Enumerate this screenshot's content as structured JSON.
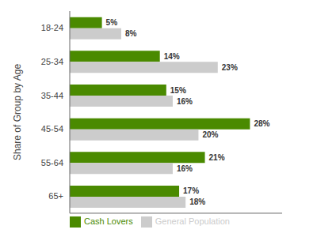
{
  "chart_data": {
    "type": "bar",
    "orientation": "horizontal",
    "categories": [
      "18-24",
      "25-34",
      "35-44",
      "45-54",
      "55-64",
      "65+"
    ],
    "ylabel": "Share of Group by Age",
    "series": [
      {
        "name": "Cash Lovers",
        "color": "#4a8a00",
        "values": [
          5,
          14,
          15,
          28,
          21,
          17
        ],
        "value_labels": [
          "5%",
          "14%",
          "15%",
          "28%",
          "21%",
          "17%"
        ]
      },
      {
        "name": "General Population",
        "color": "#cccccc",
        "values": [
          8,
          23,
          16,
          20,
          16,
          18
        ],
        "value_labels": [
          "8%",
          "23%",
          "16%",
          "20%",
          "16%",
          "18%"
        ]
      }
    ],
    "xlim": [
      0,
      33
    ],
    "xticks": [],
    "data_labels": true,
    "tick_labels": "y",
    "legend": "lower left"
  }
}
